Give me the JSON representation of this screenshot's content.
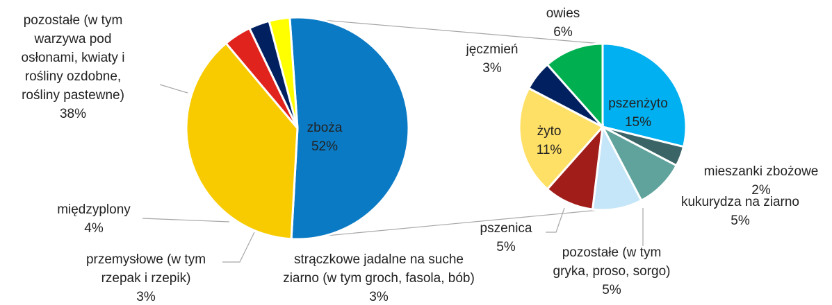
{
  "chart_data": [
    {
      "type": "pie",
      "categories": [
        [
          "zboża"
        ],
        [
          "pozostałe (w tym",
          "warzywa pod",
          "osłonami, kwiaty i",
          "rośliny ozdobne,",
          "rośliny pastewne)"
        ],
        [
          "międzyplony"
        ],
        [
          "przemysłowe (w tym",
          "rzepak i rzepik)"
        ],
        [
          "strączkowe jadalne na suche",
          "ziarno (w tym groch, fasola, bób)"
        ]
      ],
      "values": [
        52,
        38,
        4,
        3,
        3
      ],
      "value_labels": [
        "52%",
        "38%",
        "4%",
        "3%",
        "3%"
      ],
      "colors": [
        "#0b7ac4",
        "#f8cb00",
        "#e0231c",
        "#002060",
        "#ffff00"
      ]
    },
    {
      "type": "pie",
      "categories": [
        [
          "pszenżyto"
        ],
        [
          "mieszanki zbożowe"
        ],
        [
          "kukurydza na ziarno"
        ],
        [
          "pozostałe (w tym",
          "gryka, proso, sorgo)"
        ],
        [
          "pszenica"
        ],
        [
          "żyto"
        ],
        [
          "jęczmień"
        ],
        [
          "owies"
        ]
      ],
      "values": [
        15,
        2,
        5,
        5,
        5,
        11,
        3,
        6
      ],
      "value_labels": [
        "15%",
        "2%",
        "5%",
        "5%",
        "5%",
        "11%",
        "3%",
        "6%"
      ],
      "colors": [
        "#00b0f0",
        "#3b6467",
        "#5fa39c",
        "#c5e5f8",
        "#a01d1a",
        "#ffe066",
        "#002060",
        "#00b050"
      ]
    }
  ]
}
